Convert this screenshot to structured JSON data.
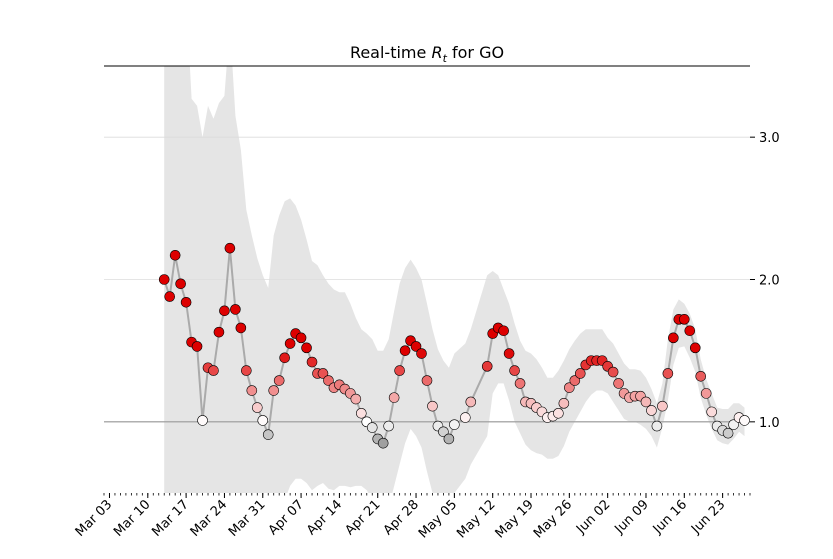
{
  "chart_data": {
    "type": "rt-band",
    "title_parts": [
      "Real-time ",
      "R",
      "t",
      " for GO"
    ],
    "x": [
      "Mar 13",
      "Mar 14",
      "Mar 15",
      "Mar 16",
      "Mar 17",
      "Mar 18",
      "Mar 19",
      "Mar 20",
      "Mar 21",
      "Mar 22",
      "Mar 23",
      "Mar 24",
      "Mar 25",
      "Mar 26",
      "Mar 27",
      "Mar 28",
      "Mar 29",
      "Mar 30",
      "Mar 31",
      "Apr 01",
      "Apr 02",
      "Apr 03",
      "Apr 04",
      "Apr 05",
      "Apr 06",
      "Apr 07",
      "Apr 08",
      "Apr 09",
      "Apr 10",
      "Apr 11",
      "Apr 12",
      "Apr 13",
      "Apr 14",
      "Apr 15",
      "Apr 16",
      "Apr 17",
      "Apr 18",
      "Apr 19",
      "Apr 20",
      "Apr 21",
      "Apr 22",
      "Apr 23",
      "Apr 24",
      "Apr 25",
      "Apr 26",
      "Apr 27",
      "Apr 28",
      "Apr 29",
      "Apr 30",
      "May 01",
      "May 02",
      "May 03",
      "May 04",
      "May 05",
      "May 07",
      "May 08",
      "May 11",
      "May 12",
      "May 13",
      "May 14",
      "May 15",
      "May 16",
      "May 17",
      "May 18",
      "May 19",
      "May 20",
      "May 21",
      "May 22",
      "May 23",
      "May 24",
      "May 25",
      "May 26",
      "May 27",
      "May 28",
      "May 29",
      "May 30",
      "May 31",
      "Jun 01",
      "Jun 02",
      "Jun 03",
      "Jun 04",
      "Jun 05",
      "Jun 06",
      "Jun 07",
      "Jun 08",
      "Jun 09",
      "Jun 10",
      "Jun 11",
      "Jun 12",
      "Jun 13",
      "Jun 14",
      "Jun 15",
      "Jun 16",
      "Jun 17",
      "Jun 18",
      "Jun 19",
      "Jun 20",
      "Jun 21",
      "Jun 22",
      "Jun 23",
      "Jun 24",
      "Jun 25",
      "Jun 26",
      "Jun 27"
    ],
    "values": [
      2.0,
      1.88,
      2.17,
      1.97,
      1.84,
      1.56,
      1.53,
      1.01,
      1.38,
      1.36,
      1.63,
      1.78,
      2.22,
      1.79,
      1.66,
      1.36,
      1.22,
      1.1,
      1.01,
      0.91,
      1.22,
      1.29,
      1.45,
      1.55,
      1.62,
      1.59,
      1.52,
      1.42,
      1.34,
      1.34,
      1.29,
      1.24,
      1.26,
      1.23,
      1.2,
      1.16,
      1.06,
      1.0,
      0.96,
      0.88,
      0.85,
      0.97,
      1.17,
      1.36,
      1.5,
      1.57,
      1.53,
      1.48,
      1.29,
      1.11,
      0.97,
      0.93,
      0.88,
      0.98,
      1.03,
      1.14,
      1.39,
      1.62,
      1.66,
      1.64,
      1.48,
      1.36,
      1.27,
      1.14,
      1.13,
      1.1,
      1.07,
      1.03,
      1.04,
      1.06,
      1.13,
      1.24,
      1.29,
      1.34,
      1.4,
      1.43,
      1.43,
      1.43,
      1.39,
      1.35,
      1.27,
      1.2,
      1.17,
      1.18,
      1.18,
      1.14,
      1.08,
      0.97,
      1.11,
      1.34,
      1.59,
      1.72,
      1.72,
      1.64,
      1.52,
      1.32,
      1.2,
      1.07,
      0.97,
      0.94,
      0.92,
      0.98,
      1.03,
      1.01
    ],
    "upper": [
      4.0,
      4.0,
      4.0,
      4.0,
      4.0,
      3.27,
      3.22,
      3.0,
      3.22,
      3.13,
      3.24,
      3.29,
      3.8,
      3.15,
      2.91,
      2.49,
      2.31,
      2.15,
      2.03,
      1.94,
      2.31,
      2.45,
      2.55,
      2.57,
      2.52,
      2.42,
      2.28,
      2.13,
      2.1,
      2.03,
      1.97,
      1.93,
      1.91,
      1.91,
      1.83,
      1.73,
      1.65,
      1.62,
      1.58,
      1.5,
      1.5,
      1.58,
      1.78,
      1.97,
      2.08,
      2.14,
      2.08,
      2.0,
      1.83,
      1.65,
      1.51,
      1.43,
      1.38,
      1.48,
      1.55,
      1.65,
      2.03,
      2.06,
      2.03,
      1.93,
      1.83,
      1.69,
      1.57,
      1.5,
      1.48,
      1.44,
      1.38,
      1.31,
      1.31,
      1.36,
      1.43,
      1.51,
      1.57,
      1.62,
      1.65,
      1.65,
      1.65,
      1.65,
      1.59,
      1.55,
      1.48,
      1.41,
      1.37,
      1.37,
      1.36,
      1.31,
      1.23,
      1.13,
      1.27,
      1.58,
      1.79,
      1.86,
      1.83,
      1.76,
      1.65,
      1.44,
      1.3,
      1.2,
      1.1,
      1.09,
      1.09,
      1.13,
      1.13,
      1.1
    ],
    "lower": [
      0.2,
      0.2,
      0.2,
      0.2,
      0.2,
      0.2,
      0.2,
      0.2,
      0.2,
      0.2,
      0.2,
      0.2,
      0.2,
      0.2,
      0.2,
      0.2,
      0.2,
      0.2,
      0.2,
      0.2,
      0.2,
      0.3,
      0.45,
      0.55,
      0.6,
      0.6,
      0.57,
      0.52,
      0.55,
      0.57,
      0.53,
      0.52,
      0.55,
      0.55,
      0.54,
      0.55,
      0.55,
      0.52,
      0.45,
      0.35,
      0.3,
      0.4,
      0.55,
      0.7,
      0.85,
      0.95,
      0.9,
      0.82,
      0.65,
      0.5,
      0.45,
      0.45,
      0.45,
      0.5,
      0.6,
      0.7,
      0.9,
      1.2,
      1.27,
      1.27,
      1.15,
      1.0,
      0.92,
      0.84,
      0.8,
      0.78,
      0.77,
      0.74,
      0.74,
      0.76,
      0.83,
      0.93,
      1.0,
      1.07,
      1.14,
      1.19,
      1.22,
      1.22,
      1.2,
      1.14,
      1.08,
      1.02,
      1.0,
      1.0,
      0.98,
      0.95,
      0.9,
      0.82,
      0.96,
      1.15,
      1.4,
      1.52,
      1.53,
      1.45,
      1.35,
      1.17,
      1.05,
      0.95,
      0.87,
      0.85,
      0.84,
      0.88,
      0.93,
      0.9
    ],
    "xlim": [
      "Mar 02",
      "Jun 28"
    ],
    "xticks": [
      "Mar 03",
      "Mar 10",
      "Mar 17",
      "Mar 24",
      "Mar 31",
      "Apr 07",
      "Apr 14",
      "Apr 21",
      "Apr 28",
      "May 05",
      "May 12",
      "May 19",
      "May 26",
      "Jun 02",
      "Jun 09",
      "Jun 16",
      "Jun 23"
    ],
    "ylim": [
      0.5,
      3.5
    ],
    "yticks": [
      {
        "value": 1,
        "label": "1.0"
      },
      {
        "value": 2,
        "label": "2.0"
      },
      {
        "value": 3,
        "label": "3.0"
      }
    ],
    "reference_line": 1,
    "grid": true,
    "band_color": "#e5e5e5",
    "line_color": "#aaaaaa",
    "low_color": "#7f7f7f",
    "mid_color": "#ffffff",
    "high_color": "#dd0000"
  }
}
